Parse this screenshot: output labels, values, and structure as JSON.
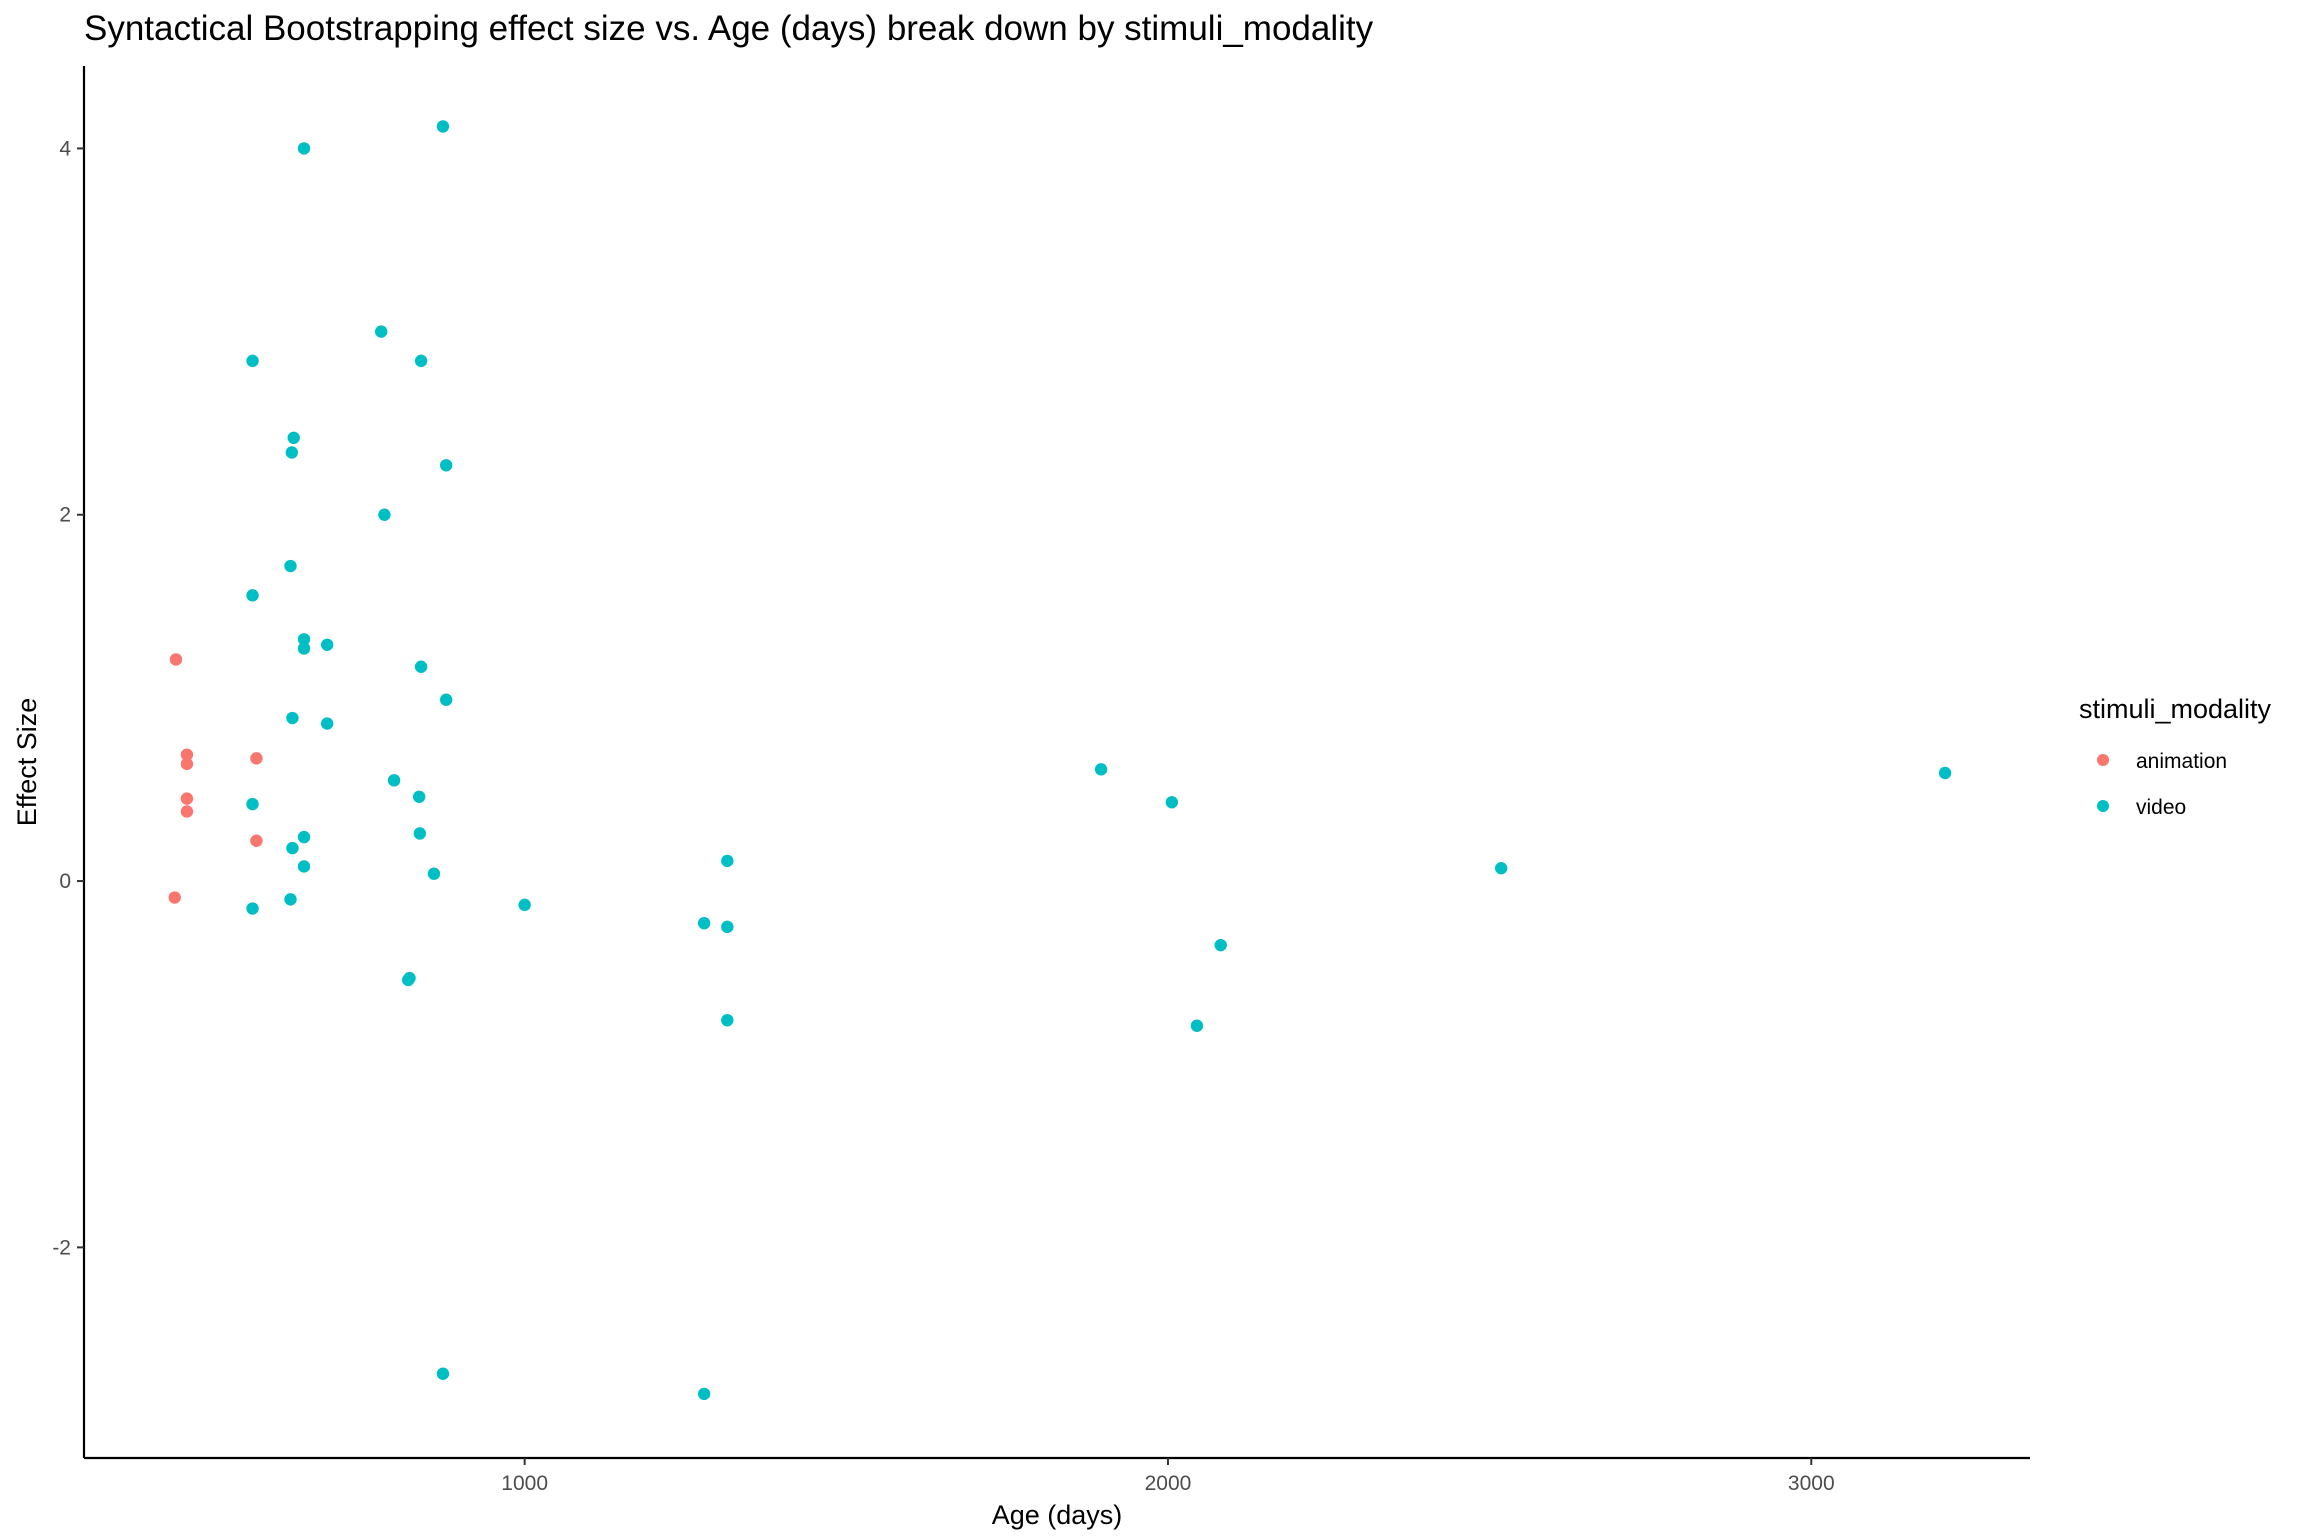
{
  "chart_data": {
    "type": "scatter",
    "title": "Syntactical Bootstrapping effect size vs. Age (days) break down by stimuli_modality",
    "xlabel": "Age (days)",
    "ylabel": "Effect Size",
    "xlim": [
      315,
      3340
    ],
    "ylim": [
      -3.15,
      4.45
    ],
    "xticks": [
      1000,
      2000,
      3000
    ],
    "yticks": [
      -2,
      0,
      2,
      4
    ],
    "xtick_labels": [
      "1000",
      "2000",
      "3000"
    ],
    "ytick_labels": [
      "-2",
      "0",
      "2",
      "4"
    ],
    "grid": false,
    "legend": {
      "title": "stimuli_modality",
      "position": "right"
    },
    "series": [
      {
        "name": "animation",
        "color": "#F8766D",
        "points": [
          [
            458,
            1.21
          ],
          [
            475,
            0.69
          ],
          [
            475,
            0.64
          ],
          [
            475,
            0.45
          ],
          [
            475,
            0.38
          ],
          [
            456,
            -0.09
          ],
          [
            583,
            0.67
          ],
          [
            583,
            0.22
          ]
        ]
      },
      {
        "name": "video",
        "color": "#00BFC4",
        "points": [
          [
            657,
            4.0
          ],
          [
            873,
            4.12
          ],
          [
            777,
            3.0
          ],
          [
            577,
            2.84
          ],
          [
            839,
            2.84
          ],
          [
            641,
            2.42
          ],
          [
            638,
            2.34
          ],
          [
            878,
            2.27
          ],
          [
            782,
            2.0
          ],
          [
            636,
            1.72
          ],
          [
            577,
            1.56
          ],
          [
            657,
            1.32
          ],
          [
            693,
            1.29
          ],
          [
            657,
            1.27
          ],
          [
            839,
            1.17
          ],
          [
            878,
            0.99
          ],
          [
            639,
            0.89
          ],
          [
            693,
            0.86
          ],
          [
            797,
            0.55
          ],
          [
            836,
            0.46
          ],
          [
            577,
            0.42
          ],
          [
            837,
            0.26
          ],
          [
            657,
            0.24
          ],
          [
            639,
            0.18
          ],
          [
            657,
            0.08
          ],
          [
            859,
            0.04
          ],
          [
            636,
            -0.1
          ],
          [
            577,
            -0.15
          ],
          [
            1000,
            -0.13
          ],
          [
            821,
            -0.53
          ],
          [
            819,
            -0.54
          ],
          [
            873,
            -2.69
          ],
          [
            1279,
            -0.23
          ],
          [
            1315,
            -0.25
          ],
          [
            1315,
            0.11
          ],
          [
            1315,
            -0.76
          ],
          [
            1279,
            -2.8
          ],
          [
            1896,
            0.61
          ],
          [
            2006,
            0.43
          ],
          [
            2082,
            -0.35
          ],
          [
            2045,
            -0.79
          ],
          [
            2518,
            0.07
          ],
          [
            3208,
            0.59
          ]
        ]
      }
    ]
  }
}
